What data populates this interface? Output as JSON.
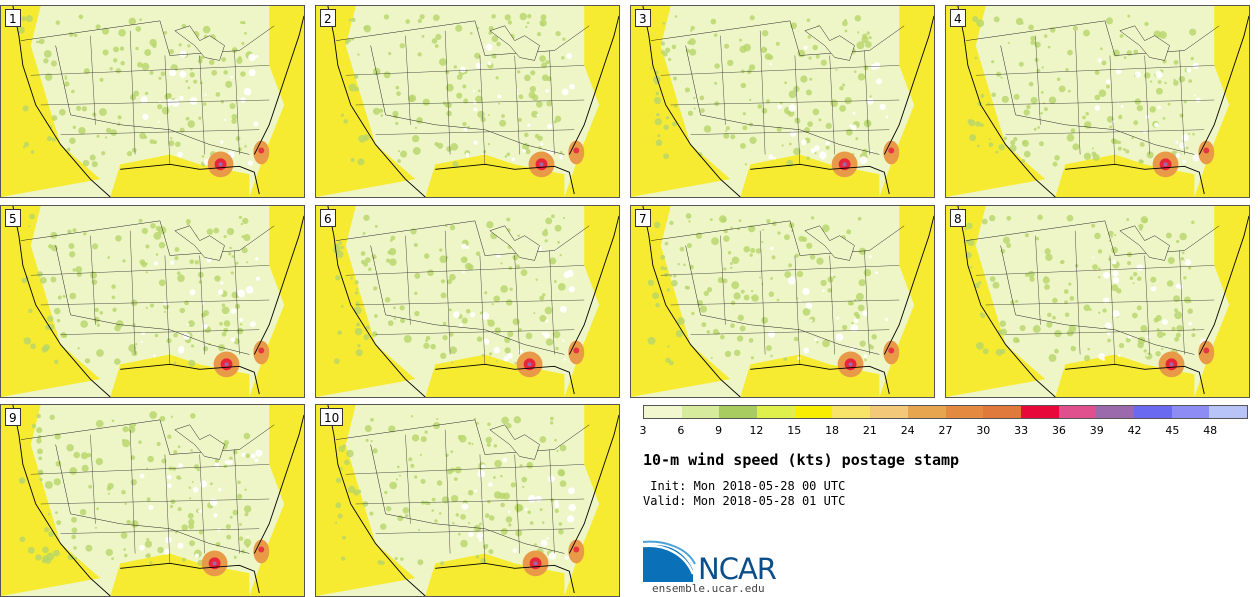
{
  "panels": [
    {
      "label": "1"
    },
    {
      "label": "2"
    },
    {
      "label": "3"
    },
    {
      "label": "4"
    },
    {
      "label": "5"
    },
    {
      "label": "6"
    },
    {
      "label": "7"
    },
    {
      "label": "8"
    },
    {
      "label": "9"
    },
    {
      "label": "10"
    }
  ],
  "colorbar": {
    "levels": [
      "3",
      "6",
      "9",
      "12",
      "15",
      "18",
      "21",
      "24",
      "27",
      "30",
      "33",
      "36",
      "39",
      "42",
      "45",
      "48"
    ],
    "colors": [
      "#f2f7d0",
      "#d6ec9c",
      "#a9cc60",
      "#dff04a",
      "#f8ef00",
      "#f8e468",
      "#f3c979",
      "#e8a550",
      "#e48a40",
      "#df7a3c",
      "#e8083a",
      "#e0508e",
      "#9b6aac",
      "#6a6af0",
      "#8c8cf4",
      "#b8c4f8"
    ]
  },
  "title": "10-m wind speed (kts) postage stamp",
  "init_line": " Init: Mon 2018-05-28 00 UTC",
  "valid_line": "Valid: Mon 2018-05-28 01 UTC",
  "logo": {
    "name": "NCAR",
    "url": "ensemble.ucar.edu"
  },
  "map_colors": {
    "land": "#eef6c8",
    "green": "#b6d66a",
    "yellow": "#f6ea20",
    "orange": "#e89a48",
    "red": "#e8083a",
    "purple": "#9b6aac",
    "white": "#ffffff",
    "border": "#222222"
  }
}
